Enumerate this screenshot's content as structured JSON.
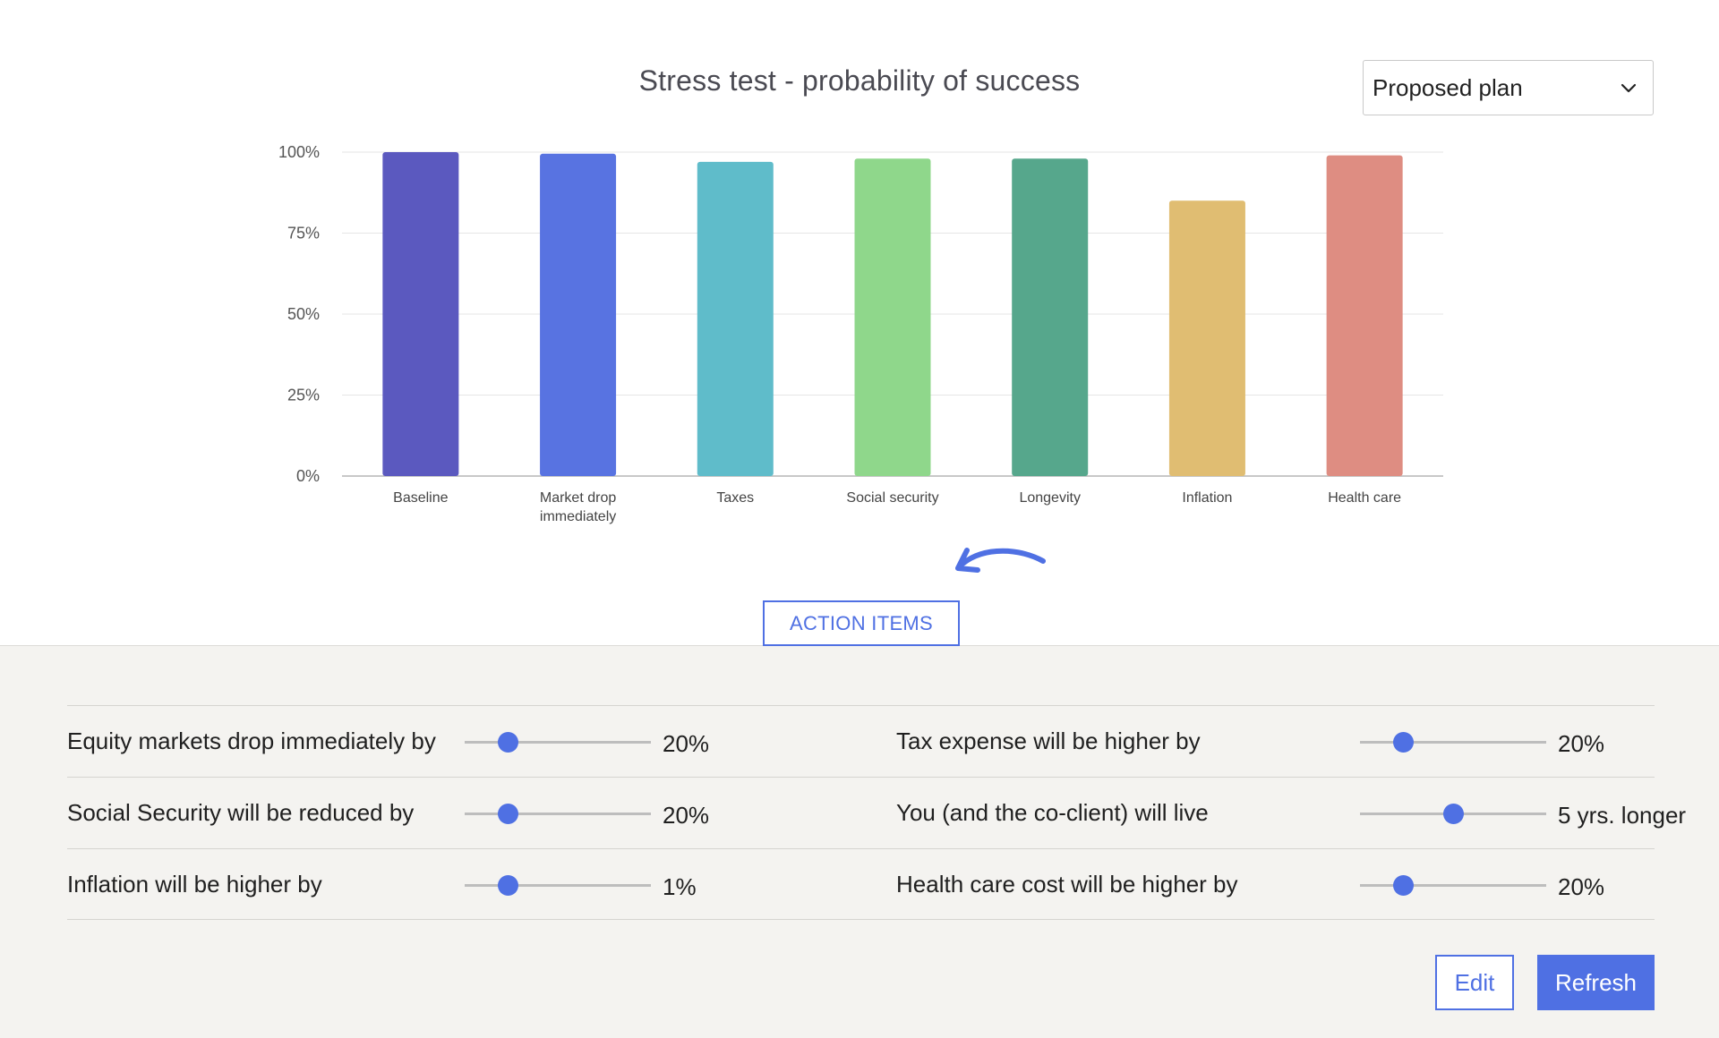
{
  "header": {
    "title": "Stress test - probability of success",
    "plan_select": {
      "selected": "Proposed plan",
      "icon": "chevron-down-icon"
    }
  },
  "chart_data": {
    "type": "bar",
    "title": "Stress test - probability of success",
    "xlabel": "",
    "ylabel": "",
    "ylim": [
      0,
      100
    ],
    "y_ticks": [
      "0%",
      "25%",
      "50%",
      "75%",
      "100%"
    ],
    "grid": true,
    "categories": [
      "Baseline",
      "Market drop immediately",
      "Taxes",
      "Social security",
      "Longevity",
      "Inflation",
      "Health care"
    ],
    "values": [
      100,
      99.5,
      97,
      98,
      98,
      85,
      99
    ],
    "colors": [
      "#5b59bf",
      "#5873e1",
      "#5fbcca",
      "#8fd78b",
      "#56a78c",
      "#e0bd72",
      "#de8d82"
    ]
  },
  "action_items": {
    "label": "ACTION ITEMS",
    "icon": "curved-arrow-icon"
  },
  "controls": {
    "rows": [
      {
        "left": {
          "label": "Equity markets drop immediately by",
          "value": "20%",
          "position": 0.23
        },
        "right": {
          "label": "Tax expense will be higher by",
          "value": "20%",
          "position": 0.23
        }
      },
      {
        "left": {
          "label": "Social Security will be reduced by",
          "value": "20%",
          "position": 0.23
        },
        "right": {
          "label": "You (and the co-client) will live",
          "value": "5 yrs. longer",
          "position": 0.5
        }
      },
      {
        "left": {
          "label": "Inflation will be higher by",
          "value": "1%",
          "position": 0.23
        },
        "right": {
          "label": "Health care cost will be higher by",
          "value": "20%",
          "position": 0.23
        }
      }
    ]
  },
  "buttons": {
    "edit": "Edit",
    "refresh": "Refresh"
  },
  "colors": {
    "accent": "#4f70e3",
    "panel_bg": "#f4f3f0"
  }
}
